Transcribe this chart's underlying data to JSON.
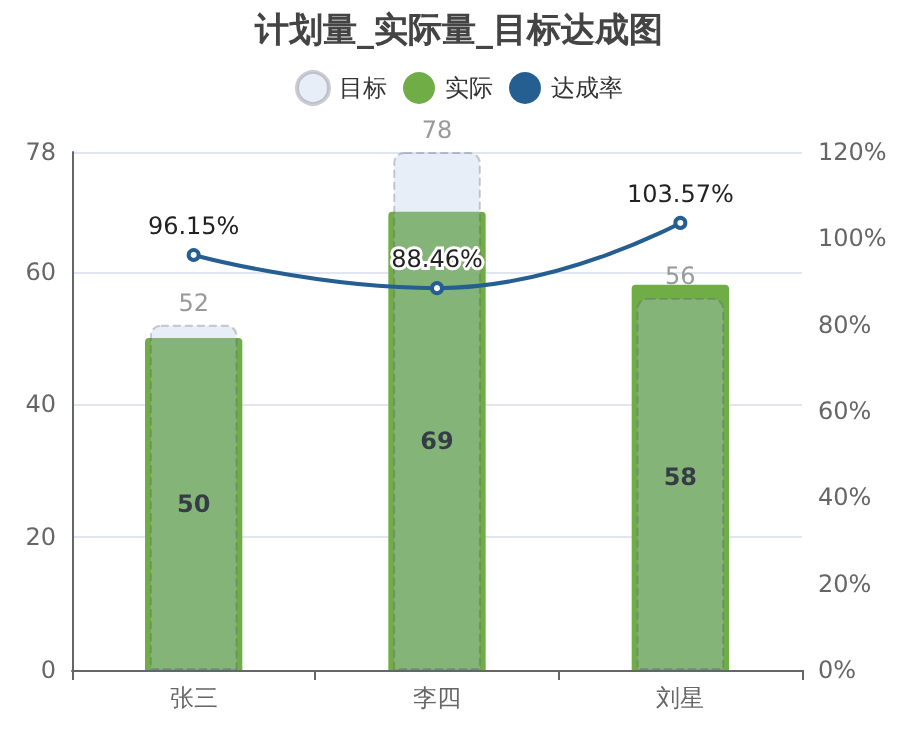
{
  "chart_data": {
    "type": "bar",
    "title": "计划量_实际量_目标达成图",
    "categories": [
      "张三",
      "李四",
      "刘星"
    ],
    "series": [
      {
        "name": "目标",
        "color": "#b4c6e7",
        "values": [
          52,
          78,
          56
        ],
        "value_labels": [
          "52",
          "78",
          "56"
        ]
      },
      {
        "name": "实际",
        "color": "#70ad47",
        "values": [
          50,
          69,
          58
        ],
        "value_labels": [
          "50",
          "69",
          "58"
        ]
      },
      {
        "name": "达成率",
        "type": "line",
        "axis": "y2",
        "color": "#255e91",
        "values": [
          96.15,
          88.46,
          103.57
        ],
        "value_labels": [
          "96.15%",
          "88.46%",
          "103.57%"
        ]
      }
    ],
    "ylim": [
      0,
      78
    ],
    "yticks": [
      0,
      20,
      40,
      60,
      78
    ],
    "y2lim": [
      0,
      120
    ],
    "y2ticks": [
      {
        "value": 0,
        "label": "0%"
      },
      {
        "value": 20,
        "label": "20%"
      },
      {
        "value": 40,
        "label": "40%"
      },
      {
        "value": 60,
        "label": "60%"
      },
      {
        "value": 80,
        "label": "80%"
      },
      {
        "value": 100,
        "label": "100%"
      },
      {
        "value": 120,
        "label": "120%"
      }
    ],
    "grid": "y",
    "legend": "top",
    "marker": "circle"
  }
}
